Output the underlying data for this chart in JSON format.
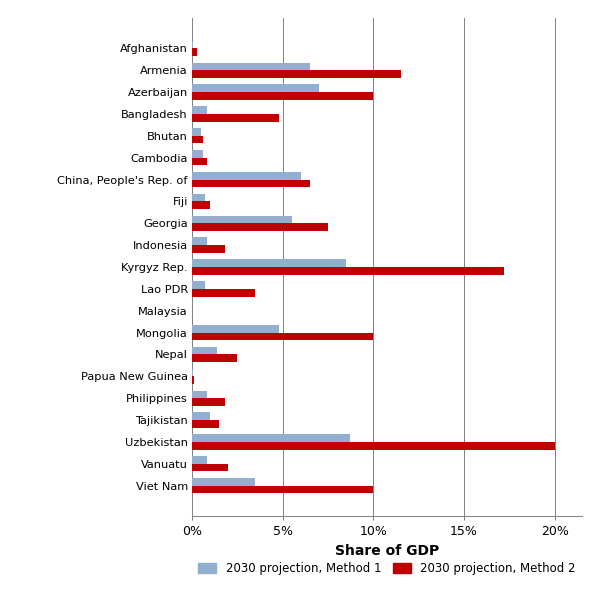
{
  "countries": [
    "Afghanistan",
    "Armenia",
    "Azerbaijan",
    "Bangladesh",
    "Bhutan",
    "Cambodia",
    "China, People's Rep. of",
    "Fiji",
    "Georgia",
    "Indonesia",
    "Kyrgyz Rep.",
    "Lao PDR",
    "Malaysia",
    "Mongolia",
    "Nepal",
    "Papua New Guinea",
    "Philippines",
    "Tajikistan",
    "Uzbekistan",
    "Vanuatu",
    "Viet Nam"
  ],
  "method1": [
    0.05,
    6.5,
    7.0,
    0.8,
    0.5,
    0.6,
    6.0,
    0.7,
    5.5,
    0.8,
    8.5,
    0.7,
    0.02,
    4.8,
    1.4,
    0.05,
    0.8,
    1.0,
    8.7,
    0.8,
    3.5
  ],
  "method2": [
    0.3,
    11.5,
    10.0,
    4.8,
    0.6,
    0.8,
    6.5,
    1.0,
    7.5,
    1.8,
    17.2,
    3.5,
    0.02,
    10.0,
    2.5,
    0.1,
    1.8,
    1.5,
    20.0,
    2.0,
    10.0
  ],
  "color_method1": "#92AFCF",
  "color_method2": "#C00000",
  "xlabel": "Share of GDP",
  "legend_method1": "2030 projection, Method 1",
  "legend_method2": "2030 projection, Method 2",
  "xticks": [
    0,
    5,
    10,
    15,
    20
  ],
  "xtick_labels": [
    "0%",
    "5%",
    "10%",
    "15%",
    "20%"
  ],
  "xlim": [
    0,
    21.5
  ],
  "bar_height": 0.35,
  "bg_color": "#FFFFFF",
  "grid_color": "#808080"
}
